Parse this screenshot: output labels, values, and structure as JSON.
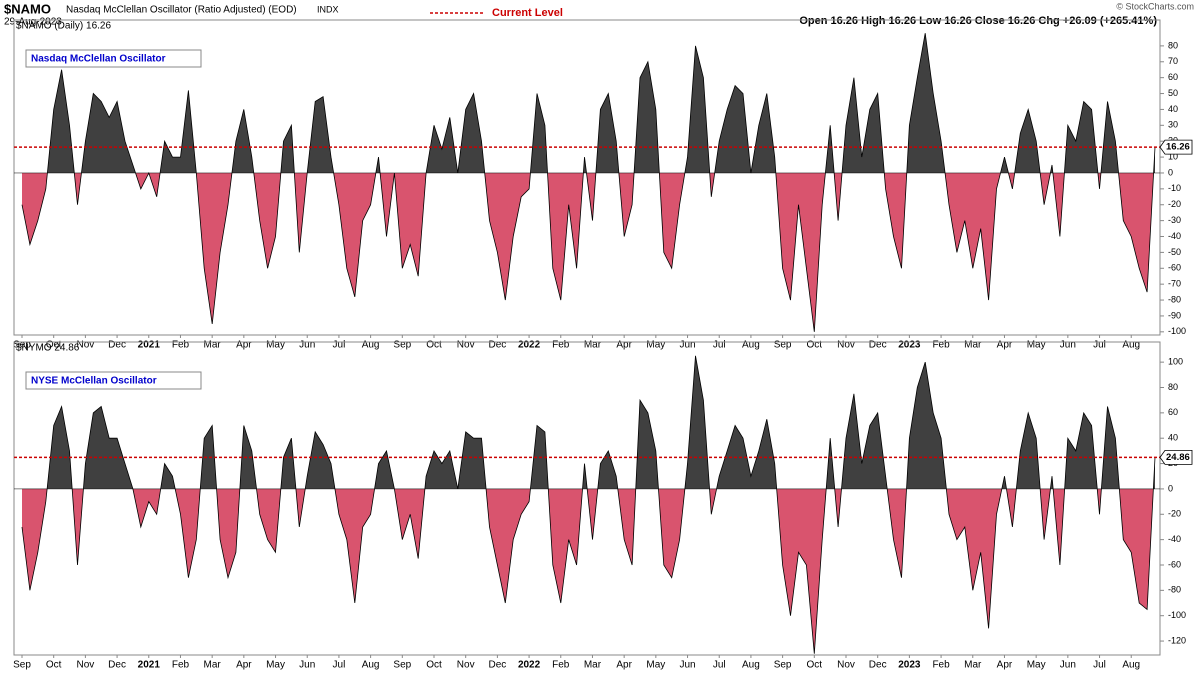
{
  "header": {
    "symbol": "$NAMO",
    "description": "Nasdaq McClellan Oscillator (Ratio Adjusted) (EOD)",
    "exchange": "INDX",
    "date": "29-Aug-2023",
    "legend": "Current Level",
    "quote": "Open 16.26  High 16.26  Low 16.26  Close 16.26  Chg +26.09 (+265.41%)",
    "credit": "© StockCharts.com"
  },
  "chart_data": [
    {
      "type": "area",
      "title": "$NAMO (Daily) 16.26",
      "label": "Nasdaq McClellan Oscillator",
      "categories": [
        "Sep",
        null,
        null,
        null,
        "Oct",
        null,
        null,
        null,
        "Nov",
        null,
        null,
        null,
        "Dec",
        null,
        null,
        null,
        "2021",
        null,
        null,
        null,
        "Feb",
        null,
        null,
        null,
        "Mar",
        null,
        null,
        null,
        "Apr",
        null,
        null,
        null,
        "May",
        null,
        null,
        null,
        "Jun",
        null,
        null,
        null,
        "Jul",
        null,
        null,
        null,
        "Aug",
        null,
        null,
        null,
        "Sep",
        null,
        null,
        null,
        "Oct",
        null,
        null,
        null,
        "Nov",
        null,
        null,
        null,
        "Dec",
        null,
        null,
        null,
        "2022",
        null,
        null,
        null,
        "Feb",
        null,
        null,
        null,
        "Mar",
        null,
        null,
        null,
        "Apr",
        null,
        null,
        null,
        "May",
        null,
        null,
        null,
        "Jun",
        null,
        null,
        null,
        "Jul",
        null,
        null,
        null,
        "Aug",
        null,
        null,
        null,
        "Sep",
        null,
        null,
        null,
        "Oct",
        null,
        null,
        null,
        "Nov",
        null,
        null,
        null,
        "Dec",
        null,
        null,
        null,
        "2023",
        null,
        null,
        null,
        "Feb",
        null,
        null,
        null,
        "Mar",
        null,
        null,
        null,
        "Apr",
        null,
        null,
        null,
        "May",
        null,
        null,
        null,
        "Jun",
        null,
        null,
        null,
        "Jul",
        null,
        null,
        null,
        "Aug",
        null,
        null,
        null
      ],
      "values": [
        -20,
        -45,
        -30,
        -10,
        40,
        65,
        30,
        -20,
        20,
        50,
        45,
        35,
        45,
        20,
        5,
        -10,
        0,
        -15,
        20,
        10,
        10,
        52,
        0,
        -60,
        -95,
        -50,
        -20,
        20,
        40,
        10,
        -30,
        -60,
        -40,
        20,
        30,
        -50,
        0,
        45,
        48,
        10,
        -20,
        -60,
        -78,
        -30,
        -20,
        10,
        -40,
        0,
        -60,
        -45,
        -65,
        0,
        30,
        15,
        35,
        0,
        40,
        50,
        20,
        -30,
        -50,
        -80,
        -40,
        -15,
        -10,
        50,
        30,
        -60,
        -80,
        -20,
        -60,
        10,
        -30,
        40,
        50,
        20,
        -40,
        -20,
        60,
        70,
        40,
        -50,
        -60,
        -20,
        10,
        80,
        60,
        -15,
        20,
        40,
        55,
        50,
        0,
        30,
        50,
        10,
        -60,
        -80,
        -20,
        -60,
        -100,
        -20,
        30,
        -30,
        30,
        60,
        10,
        40,
        50,
        -10,
        -40,
        -60,
        30,
        60,
        88,
        50,
        20,
        -20,
        -50,
        -30,
        -60,
        -35,
        -80,
        -10,
        10,
        -10,
        25,
        40,
        20,
        -20,
        5,
        -40,
        30,
        20,
        45,
        40,
        -10,
        45,
        20,
        -30,
        -40,
        -60,
        -75,
        16.26
      ],
      "colors": {
        "positive": "#404040",
        "negative": "#d9546e"
      },
      "level": 16.26,
      "level_color": "#cc0000",
      "ylim": [
        -102,
        90
      ],
      "yticks": [
        -100,
        -90,
        -80,
        -70,
        -60,
        -50,
        -40,
        -30,
        -20,
        -10,
        0,
        10,
        20,
        30,
        40,
        50,
        60,
        70,
        80
      ]
    },
    {
      "type": "area",
      "title": "$NYMO 24.86",
      "label": "NYSE McClellan Oscillator",
      "categories": [
        "Sep",
        null,
        null,
        null,
        "Oct",
        null,
        null,
        null,
        "Nov",
        null,
        null,
        null,
        "Dec",
        null,
        null,
        null,
        "2021",
        null,
        null,
        null,
        "Feb",
        null,
        null,
        null,
        "Mar",
        null,
        null,
        null,
        "Apr",
        null,
        null,
        null,
        "May",
        null,
        null,
        null,
        "Jun",
        null,
        null,
        null,
        "Jul",
        null,
        null,
        null,
        "Aug",
        null,
        null,
        null,
        "Sep",
        null,
        null,
        null,
        "Oct",
        null,
        null,
        null,
        "Nov",
        null,
        null,
        null,
        "Dec",
        null,
        null,
        null,
        "2022",
        null,
        null,
        null,
        "Feb",
        null,
        null,
        null,
        "Mar",
        null,
        null,
        null,
        "Apr",
        null,
        null,
        null,
        "May",
        null,
        null,
        null,
        "Jun",
        null,
        null,
        null,
        "Jul",
        null,
        null,
        null,
        "Aug",
        null,
        null,
        null,
        "Sep",
        null,
        null,
        null,
        "Oct",
        null,
        null,
        null,
        "Nov",
        null,
        null,
        null,
        "Dec",
        null,
        null,
        null,
        "2023",
        null,
        null,
        null,
        "Feb",
        null,
        null,
        null,
        "Mar",
        null,
        null,
        null,
        "Apr",
        null,
        null,
        null,
        "May",
        null,
        null,
        null,
        "Jun",
        null,
        null,
        null,
        "Jul",
        null,
        null,
        null,
        "Aug",
        null,
        null,
        null
      ],
      "values": [
        -30,
        -80,
        -50,
        -10,
        50,
        65,
        30,
        -60,
        20,
        60,
        65,
        40,
        40,
        20,
        0,
        -30,
        -10,
        -20,
        20,
        10,
        -20,
        -70,
        -40,
        40,
        50,
        -40,
        -70,
        -50,
        50,
        30,
        -20,
        -40,
        -50,
        25,
        40,
        -30,
        10,
        45,
        35,
        20,
        -20,
        -40,
        -90,
        -30,
        -20,
        20,
        30,
        0,
        -40,
        -20,
        -55,
        10,
        30,
        20,
        30,
        0,
        45,
        40,
        40,
        -30,
        -60,
        -90,
        -40,
        -20,
        -10,
        50,
        45,
        -60,
        -90,
        -40,
        -60,
        20,
        -40,
        20,
        30,
        10,
        -40,
        -60,
        70,
        60,
        30,
        -60,
        -70,
        -40,
        20,
        105,
        70,
        -20,
        10,
        30,
        50,
        40,
        10,
        30,
        55,
        20,
        -60,
        -100,
        -50,
        -60,
        -130,
        -40,
        40,
        -30,
        40,
        75,
        20,
        50,
        60,
        10,
        -40,
        -70,
        40,
        80,
        100,
        60,
        40,
        -20,
        -40,
        -30,
        -80,
        -50,
        -110,
        -20,
        10,
        -30,
        30,
        60,
        40,
        -40,
        10,
        -60,
        40,
        30,
        60,
        50,
        -20,
        65,
        40,
        -40,
        -50,
        -90,
        -95,
        24.86
      ],
      "colors": {
        "positive": "#404040",
        "negative": "#d9546e"
      },
      "level": 24.86,
      "level_color": "#cc0000",
      "ylim": [
        -131,
        108
      ],
      "yticks": [
        -120,
        -100,
        -80,
        -60,
        -40,
        -20,
        0,
        20,
        40,
        60,
        80,
        100
      ]
    }
  ]
}
